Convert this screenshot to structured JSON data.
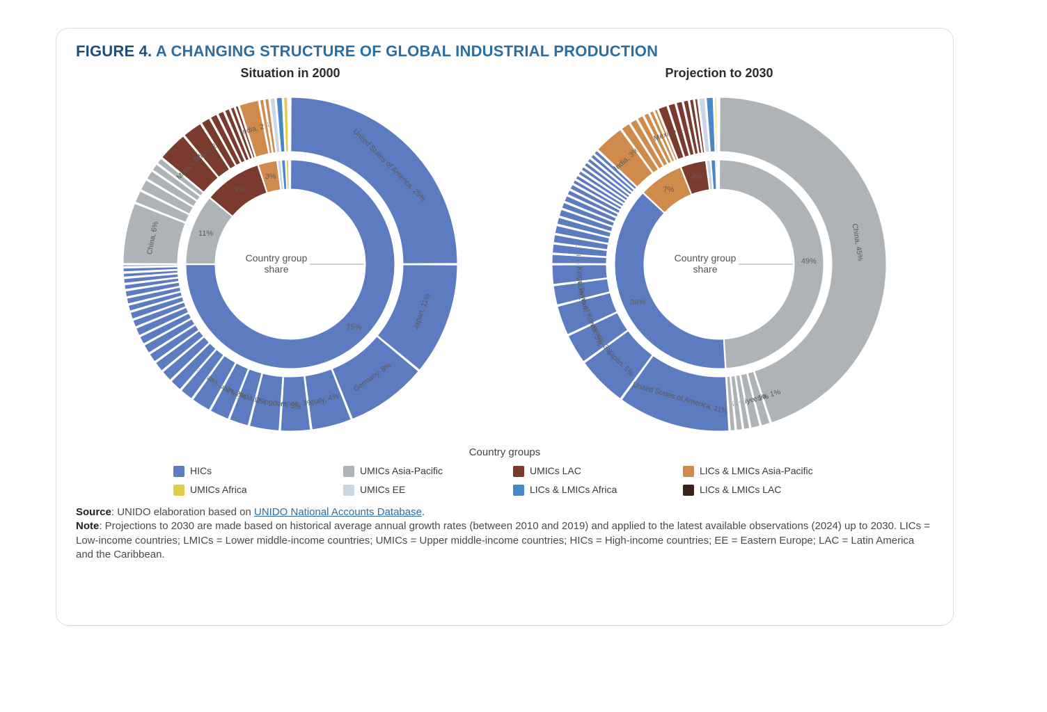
{
  "figure": {
    "prefix": "FIGURE 4.",
    "title": "A CHANGING STRUCTURE OF GLOBAL INDUSTRIAL PRODUCTION",
    "title_color": "#2d6ea0",
    "prefix_color": "#1f4e79",
    "title_fontsize": 22
  },
  "palette": {
    "HICs": "#5d7bc0",
    "UMICs_AsiaPacific": "#aeb3b7",
    "UMICs_LAC": "#7a3a2e",
    "LICs_LMICs_AsiaPacific": "#d08a4b",
    "UMICs_Africa": "#e6c94e",
    "UMICs_EE": "#c9d6e8",
    "LICs_LMICs_Africa": "#4a87c7",
    "LICs_LMICs_LAC": "#3b2218",
    "separator": "#ffffff",
    "grid": "#e0e0e0",
    "background": "#ffffff"
  },
  "chart_common": {
    "type": "sunburst",
    "outer_radius": 240,
    "outer_inner_radius": 162,
    "inner_outer_radius": 150,
    "inner_inner_radius": 108,
    "gap_deg": 0.6,
    "start_angle_deg": 90,
    "center_label": "Country group\nshare",
    "center_label_fontsize": 14,
    "legend_title": "Country groups"
  },
  "charts": [
    {
      "id": "chart2000",
      "subtitle": "Situation in 2000",
      "inner_ring": [
        {
          "group": "HICs",
          "value": 75,
          "label": "75%"
        },
        {
          "group": "UMICs_AsiaPacific",
          "value": 11,
          "label": "11%"
        },
        {
          "group": "UMICs_LAC",
          "value": 9,
          "label": "9%"
        },
        {
          "group": "LICs_LMICs_AsiaPacific",
          "value": 3,
          "label": "3%"
        },
        {
          "group": "UMICs_EE",
          "value": 0.6,
          "label": ""
        },
        {
          "group": "LICs_LMICs_Africa",
          "value": 0.7,
          "label": ""
        },
        {
          "group": "UMICs_Africa",
          "value": 0.5,
          "label": ""
        },
        {
          "group": "LICs_LMICs_LAC",
          "value": 0.2,
          "label": ""
        }
      ],
      "outer_ring": [
        {
          "group": "HICs",
          "value": 25,
          "label": "United States of America, 25%"
        },
        {
          "group": "HICs",
          "value": 11,
          "label": "Japan, 11%"
        },
        {
          "group": "HICs",
          "value": 8,
          "label": "Germany, 8%"
        },
        {
          "group": "HICs",
          "value": 4,
          "label": "Italy, 4%"
        },
        {
          "group": "HICs",
          "value": 3,
          "label": "France, 3%"
        },
        {
          "group": "HICs",
          "value": 3,
          "label": "United Kingdom, 3%"
        },
        {
          "group": "HICs",
          "value": 2,
          "label": "Canada, 2%"
        },
        {
          "group": "HICs",
          "value": 2,
          "label": "Spain, 2%"
        },
        {
          "group": "HICs",
          "value": 2,
          "label": "Russian…, 2%"
        },
        {
          "group": "HICs",
          "value": 1.4,
          "label": ""
        },
        {
          "group": "HICs",
          "value": 1.3,
          "label": ""
        },
        {
          "group": "HICs",
          "value": 1.2,
          "label": ""
        },
        {
          "group": "HICs",
          "value": 1.1,
          "label": ""
        },
        {
          "group": "HICs",
          "value": 1.0,
          "label": ""
        },
        {
          "group": "HICs",
          "value": 1.0,
          "label": ""
        },
        {
          "group": "HICs",
          "value": 0.9,
          "label": ""
        },
        {
          "group": "HICs",
          "value": 0.9,
          "label": ""
        },
        {
          "group": "HICs",
          "value": 0.8,
          "label": ""
        },
        {
          "group": "HICs",
          "value": 0.8,
          "label": ""
        },
        {
          "group": "HICs",
          "value": 0.7,
          "label": ""
        },
        {
          "group": "HICs",
          "value": 0.7,
          "label": ""
        },
        {
          "group": "HICs",
          "value": 0.7,
          "label": ""
        },
        {
          "group": "HICs",
          "value": 0.6,
          "label": ""
        },
        {
          "group": "HICs",
          "value": 0.6,
          "label": ""
        },
        {
          "group": "HICs",
          "value": 0.5,
          "label": ""
        },
        {
          "group": "HICs",
          "value": 0.5,
          "label": ""
        },
        {
          "group": "HICs",
          "value": 0.3,
          "label": ""
        },
        {
          "group": "UMICs_AsiaPacific",
          "value": 6,
          "label": "China, 6%"
        },
        {
          "group": "UMICs_AsiaPacific",
          "value": 1.3,
          "label": ""
        },
        {
          "group": "UMICs_AsiaPacific",
          "value": 1.2,
          "label": ""
        },
        {
          "group": "UMICs_AsiaPacific",
          "value": 1.0,
          "label": ""
        },
        {
          "group": "UMICs_AsiaPacific",
          "value": 0.8,
          "label": ""
        },
        {
          "group": "UMICs_AsiaPacific",
          "value": 0.7,
          "label": ""
        },
        {
          "group": "UMICs_LAC",
          "value": 3,
          "label": "Mexico, 3%"
        },
        {
          "group": "UMICs_LAC",
          "value": 2,
          "label": "Brazil, 2%"
        },
        {
          "group": "UMICs_LAC",
          "value": 1.0,
          "label": ""
        },
        {
          "group": "UMICs_LAC",
          "value": 0.8,
          "label": ""
        },
        {
          "group": "UMICs_LAC",
          "value": 0.7,
          "label": ""
        },
        {
          "group": "UMICs_LAC",
          "value": 0.6,
          "label": ""
        },
        {
          "group": "UMICs_LAC",
          "value": 0.5,
          "label": ""
        },
        {
          "group": "UMICs_LAC",
          "value": 0.4,
          "label": ""
        },
        {
          "group": "LICs_LMICs_AsiaPacific",
          "value": 2,
          "label": "India, 2%"
        },
        {
          "group": "LICs_LMICs_AsiaPacific",
          "value": 0.5,
          "label": ""
        },
        {
          "group": "LICs_LMICs_AsiaPacific",
          "value": 0.5,
          "label": ""
        },
        {
          "group": "UMICs_EE",
          "value": 0.6,
          "label": ""
        },
        {
          "group": "LICs_LMICs_Africa",
          "value": 0.7,
          "label": ""
        },
        {
          "group": "UMICs_Africa",
          "value": 0.5,
          "label": ""
        },
        {
          "group": "LICs_LMICs_LAC",
          "value": 0.2,
          "label": ""
        }
      ]
    },
    {
      "id": "chart2030",
      "subtitle": "Projection to 2030",
      "inner_ring": [
        {
          "group": "UMICs_AsiaPacific",
          "value": 49,
          "label": "49%"
        },
        {
          "group": "HICs",
          "value": 38,
          "label": "38%"
        },
        {
          "group": "LICs_LMICs_AsiaPacific",
          "value": 7,
          "label": "7%"
        },
        {
          "group": "UMICs_LAC",
          "value": 4,
          "label": "4%"
        },
        {
          "group": "UMICs_EE",
          "value": 0.7,
          "label": ""
        },
        {
          "group": "LICs_LMICs_Africa",
          "value": 0.8,
          "label": ""
        },
        {
          "group": "UMICs_Africa",
          "value": 0.3,
          "label": ""
        },
        {
          "group": "LICs_LMICs_LAC",
          "value": 0.2,
          "label": ""
        }
      ],
      "outer_ring": [
        {
          "group": "UMICs_AsiaPacific",
          "value": 45,
          "label": "China, 45%"
        },
        {
          "group": "UMICs_AsiaPacific",
          "value": 1,
          "label": "Indonesia, 1%"
        },
        {
          "group": "UMICs_AsiaPacific",
          "value": 1,
          "label": "Türkiye, 1%"
        },
        {
          "group": "UMICs_AsiaPacific",
          "value": 0.7,
          "label": ""
        },
        {
          "group": "UMICs_AsiaPacific",
          "value": 0.7,
          "label": ""
        },
        {
          "group": "UMICs_AsiaPacific",
          "value": 0.6,
          "label": ""
        },
        {
          "group": "HICs",
          "value": 11,
          "label": "United States of America, 11%"
        },
        {
          "group": "HICs",
          "value": 5,
          "label": "Japan, 5%"
        },
        {
          "group": "HICs",
          "value": 3,
          "label": "Germany, 3%"
        },
        {
          "group": "HICs",
          "value": 3,
          "label": "Republic of Korea, 3%"
        },
        {
          "group": "HICs",
          "value": 2,
          "label": "China, Taiwan…"
        },
        {
          "group": "HICs",
          "value": 2,
          "label": "United Kingdom…"
        },
        {
          "group": "HICs",
          "value": 1.0,
          "label": ""
        },
        {
          "group": "HICs",
          "value": 1.0,
          "label": ""
        },
        {
          "group": "HICs",
          "value": 0.9,
          "label": ""
        },
        {
          "group": "HICs",
          "value": 0.9,
          "label": ""
        },
        {
          "group": "HICs",
          "value": 0.8,
          "label": ""
        },
        {
          "group": "HICs",
          "value": 0.8,
          "label": ""
        },
        {
          "group": "HICs",
          "value": 0.7,
          "label": ""
        },
        {
          "group": "HICs",
          "value": 0.7,
          "label": ""
        },
        {
          "group": "HICs",
          "value": 0.6,
          "label": ""
        },
        {
          "group": "HICs",
          "value": 0.6,
          "label": ""
        },
        {
          "group": "HICs",
          "value": 0.5,
          "label": ""
        },
        {
          "group": "HICs",
          "value": 0.5,
          "label": ""
        },
        {
          "group": "HICs",
          "value": 0.5,
          "label": ""
        },
        {
          "group": "HICs",
          "value": 0.5,
          "label": ""
        },
        {
          "group": "HICs",
          "value": 0.5,
          "label": ""
        },
        {
          "group": "HICs",
          "value": 0.5,
          "label": ""
        },
        {
          "group": "HICs",
          "value": 0.5,
          "label": ""
        },
        {
          "group": "HICs",
          "value": 0.5,
          "label": ""
        },
        {
          "group": "LICs_LMICs_AsiaPacific",
          "value": 3,
          "label": "India, 3%"
        },
        {
          "group": "LICs_LMICs_AsiaPacific",
          "value": 1.0,
          "label": ""
        },
        {
          "group": "LICs_LMICs_AsiaPacific",
          "value": 0.8,
          "label": ""
        },
        {
          "group": "LICs_LMICs_AsiaPacific",
          "value": 0.7,
          "label": ""
        },
        {
          "group": "LICs_LMICs_AsiaPacific",
          "value": 0.6,
          "label": ""
        },
        {
          "group": "LICs_LMICs_AsiaPacific",
          "value": 0.5,
          "label": ""
        },
        {
          "group": "LICs_LMICs_AsiaPacific",
          "value": 0.4,
          "label": ""
        },
        {
          "group": "UMICs_LAC",
          "value": 1,
          "label": "Mexico, 1%"
        },
        {
          "group": "UMICs_LAC",
          "value": 0.8,
          "label": ""
        },
        {
          "group": "UMICs_LAC",
          "value": 0.7,
          "label": ""
        },
        {
          "group": "UMICs_LAC",
          "value": 0.6,
          "label": ""
        },
        {
          "group": "UMICs_LAC",
          "value": 0.5,
          "label": ""
        },
        {
          "group": "UMICs_LAC",
          "value": 0.4,
          "label": ""
        },
        {
          "group": "UMICs_EE",
          "value": 0.7,
          "label": ""
        },
        {
          "group": "LICs_LMICs_Africa",
          "value": 0.8,
          "label": ""
        },
        {
          "group": "UMICs_Africa",
          "value": 0.3,
          "label": ""
        },
        {
          "group": "LICs_LMICs_LAC",
          "value": 0.2,
          "label": ""
        }
      ]
    }
  ],
  "legend": [
    {
      "key": "HICs",
      "label": "HICs"
    },
    {
      "key": "UMICs_AsiaPacific",
      "label": "UMICs Asia-Pacific"
    },
    {
      "key": "UMICs_LAC",
      "label": "UMICs LAC"
    },
    {
      "key": "LICs_LMICs_AsiaPacific",
      "label": "LICs & LMICs Asia-Pacific"
    },
    {
      "key": "UMICs_Africa",
      "label": "UMICs Africa"
    },
    {
      "key": "UMICs_EE",
      "label": "UMICs EE"
    },
    {
      "key": "LICs_LMICs_Africa",
      "label": "LICs & LMICs Africa"
    },
    {
      "key": "LICs_LMICs_LAC",
      "label": "LICs & LMICs LAC"
    }
  ],
  "footnotes": {
    "source_prefix": "Source",
    "source_text": ": UNIDO elaboration based on ",
    "source_link_text": "UNIDO National Accounts Database",
    "source_suffix": ".",
    "note_prefix": "Note",
    "note_text": ": Projections to 2030 are made based on historical average annual growth rates (between 2010 and 2019) and applied to the latest available observations (2024) up to 2030. LICs = Low-income countries; LMICs = Lower middle-income countries; UMICs = Upper middle-income countries; HICs = High-income countries; EE = Eastern Europe; LAC = Latin America and the Caribbean."
  }
}
